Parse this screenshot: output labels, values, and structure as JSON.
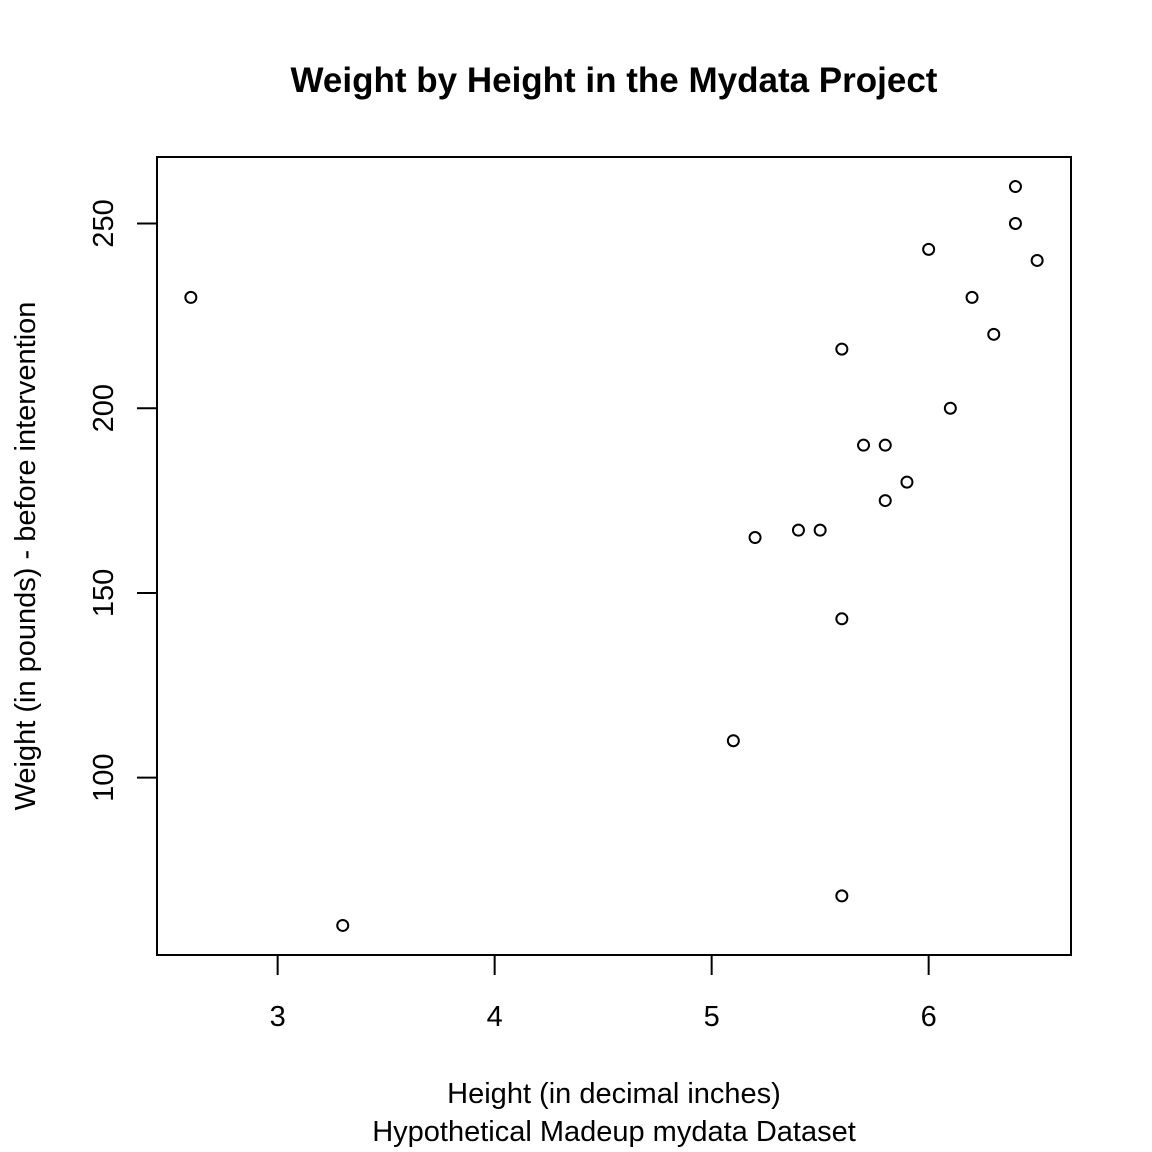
{
  "chart_data": {
    "type": "scatter",
    "title": "Weight by Height in the Mydata Project",
    "xlabel": "Height (in decimal inches)",
    "subtitle": "Hypothetical Madeup mydata Dataset",
    "ylabel": "Weight (in pounds) - before intervention",
    "xlim": [
      2.444,
      6.656
    ],
    "ylim": [
      52,
      268
    ],
    "xticks": [
      3,
      4,
      5,
      6
    ],
    "yticks": [
      100,
      150,
      200,
      250
    ],
    "grid": false,
    "points": [
      {
        "x": 2.6,
        "y": 230
      },
      {
        "x": 3.3,
        "y": 60
      },
      {
        "x": 5.1,
        "y": 110
      },
      {
        "x": 5.2,
        "y": 165
      },
      {
        "x": 5.4,
        "y": 167
      },
      {
        "x": 5.5,
        "y": 167
      },
      {
        "x": 5.6,
        "y": 216
      },
      {
        "x": 5.6,
        "y": 143
      },
      {
        "x": 5.6,
        "y": 68
      },
      {
        "x": 5.7,
        "y": 190
      },
      {
        "x": 5.8,
        "y": 190
      },
      {
        "x": 5.8,
        "y": 175
      },
      {
        "x": 5.9,
        "y": 180
      },
      {
        "x": 6.0,
        "y": 243
      },
      {
        "x": 6.1,
        "y": 200
      },
      {
        "x": 6.2,
        "y": 230
      },
      {
        "x": 6.3,
        "y": 220
      },
      {
        "x": 6.4,
        "y": 260
      },
      {
        "x": 6.4,
        "y": 250
      },
      {
        "x": 6.5,
        "y": 240
      }
    ]
  }
}
